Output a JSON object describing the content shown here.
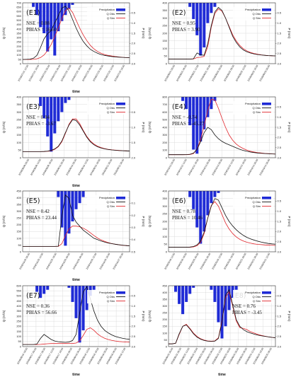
{
  "figure": {
    "colors": {
      "precip": "#1f2bd6",
      "obs": "#111111",
      "sim": "#e0252b",
      "grid": "#d4d4d4",
      "axis": "#333333"
    }
  },
  "chart_data": [
    {
      "id": "E1",
      "title": "(E1)",
      "type": "line",
      "xlabel": "time",
      "ylabel": "Q (m³/s)",
      "y2label": "P (mm)",
      "ylim": [
        0,
        700
      ],
      "yticks": [
        0,
        50,
        100,
        150,
        200,
        250,
        300,
        350,
        400,
        450,
        500,
        550,
        600,
        650,
        700
      ],
      "y2lim": [
        0,
        3.0
      ],
      "y2ticks": [
        0.5,
        1.0,
        1.5,
        2.0,
        2.5,
        3.0
      ],
      "xtick_labels": [
        "2018/07/21 12:00",
        "2018/07/21 18:00",
        "2018/07/22 00:00",
        "2018/07/22 06:00",
        "2018/07/22 12:00",
        "2018/07/22 18:00",
        "2018/07/23 00:00",
        "2018/07/23 06:00",
        "2018/07/23 12:00",
        "2018/07/23 18:00"
      ],
      "nse": "NSE = 0.88",
      "pbias": "PBIAS = 16.60",
      "annotation_pos": "left",
      "legend_pos": "top-right",
      "legend": [
        "Precipitation",
        "Q Obs",
        "Q Sim"
      ],
      "x_count": 31,
      "obs": [
        48,
        50,
        52,
        62,
        95,
        185,
        285,
        345,
        380,
        470,
        550,
        640,
        660,
        610,
        510,
        410,
        325,
        255,
        205,
        165,
        140,
        120,
        105,
        95,
        88,
        82,
        78,
        75,
        72,
        70,
        68
      ],
      "sim": [
        48,
        48,
        48,
        50,
        56,
        70,
        100,
        150,
        220,
        310,
        410,
        520,
        610,
        640,
        590,
        500,
        410,
        330,
        265,
        210,
        170,
        140,
        120,
        105,
        95,
        88,
        82,
        77,
        73,
        70,
        68
      ],
      "precip": [
        0,
        0,
        0,
        0.2,
        0.6,
        1.2,
        1.5,
        2.4,
        1.8,
        2.6,
        1.4,
        0.9,
        0.6,
        0.3,
        0.1,
        0,
        0,
        0,
        0,
        0,
        0,
        0,
        0,
        0,
        0,
        0,
        0,
        0,
        0,
        0,
        0
      ]
    },
    {
      "id": "E2",
      "title": "(E2)",
      "type": "line",
      "xlabel": "",
      "ylabel": "Q (m³/s)",
      "y2label": "P (mm)",
      "ylim": [
        0,
        400
      ],
      "yticks": [
        0,
        50,
        100,
        150,
        200,
        250,
        300,
        350,
        400
      ],
      "y2lim": [
        0,
        3.0
      ],
      "y2ticks": [
        0.5,
        1.0,
        1.5,
        2.0,
        2.5,
        3.0
      ],
      "xtick_labels": [
        "2018/08/01 00:00",
        "2018/08/01 06:00",
        "2018/08/01 12:00",
        "2018/08/01 18:00",
        "2018/08/02 00:00",
        "2018/08/02 06:00",
        "2018/08/02 12:00",
        "2018/08/02 18:00",
        "2018/08/03 00:00"
      ],
      "nse": "NSE = 0.95",
      "pbias": "PBIAS = 3.90",
      "annotation_pos": "left",
      "legend_pos": "top-right",
      "legend": [
        "Precipitation",
        "Q Obs",
        "Q Sim"
      ],
      "x_count": 31,
      "obs": [
        30,
        30,
        30,
        30,
        30,
        30,
        30,
        32,
        70,
        58,
        55,
        130,
        250,
        340,
        370,
        350,
        300,
        240,
        180,
        140,
        110,
        90,
        78,
        70,
        64,
        60,
        57,
        55,
        53,
        52,
        51
      ],
      "sim": [
        30,
        30,
        30,
        30,
        30,
        30,
        30,
        31,
        40,
        42,
        48,
        110,
        240,
        330,
        360,
        345,
        300,
        245,
        190,
        150,
        120,
        98,
        84,
        74,
        67,
        62,
        58,
        55,
        53,
        52,
        51
      ],
      "precip": [
        0,
        0,
        0,
        0,
        0,
        0,
        0.2,
        0.8,
        1.6,
        2.6,
        2.2,
        1.0,
        0.5,
        0.2,
        0,
        0,
        0,
        0,
        0,
        0,
        0,
        0,
        0,
        0,
        0,
        0,
        0,
        0,
        0,
        0,
        0
      ]
    },
    {
      "id": "E3",
      "title": "(E3)",
      "type": "line",
      "xlabel": "time",
      "ylabel": "Q (m³/s)",
      "y2label": "P (mm)",
      "ylim": [
        0,
        400
      ],
      "yticks": [
        0,
        50,
        100,
        150,
        200,
        250,
        300,
        350,
        400
      ],
      "y2lim": [
        0,
        2.0
      ],
      "y2ticks": [
        0.5,
        1.0,
        1.5,
        2.0
      ],
      "xtick_labels": [
        "2019/08/09 06:00",
        "2019/08/09 12:00",
        "2019/08/09 18:00",
        "2019/08/10 00:00",
        "2019/08/10 06:00",
        "2019/08/10 12:00",
        "2019/08/10 18:00",
        "2019/08/11 00:00",
        "2019/08/11 06:00"
      ],
      "nse": "NSE = 0.94",
      "pbias": "PBIAS = -3.67",
      "annotation_pos": "left",
      "legend_pos": "top-right",
      "legend": [
        "Precipitation",
        "Q Obs",
        "Q Sim"
      ],
      "x_count": 31,
      "obs": [
        40,
        40,
        40,
        40,
        40,
        40,
        41,
        43,
        48,
        58,
        75,
        110,
        165,
        215,
        250,
        245,
        215,
        175,
        135,
        105,
        85,
        72,
        64,
        58,
        54,
        51,
        49,
        47,
        46,
        45,
        44
      ],
      "sim": [
        40,
        40,
        40,
        40,
        40,
        40,
        40,
        42,
        46,
        55,
        72,
        105,
        160,
        220,
        255,
        255,
        225,
        180,
        140,
        110,
        90,
        76,
        67,
        60,
        55,
        52,
        50,
        48,
        46,
        45,
        44
      ],
      "precip": [
        0,
        0,
        0,
        0,
        0,
        0.3,
        0.7,
        1.3,
        1.8,
        1.2,
        0.8,
        0.5,
        0.2,
        0.1,
        0,
        0,
        0,
        0,
        0,
        0,
        0,
        0,
        0,
        0,
        0,
        0,
        0,
        0,
        0,
        0,
        0
      ]
    },
    {
      "id": "E4",
      "title": "(E4)",
      "type": "line",
      "xlabel": "",
      "ylabel": "Q (m³/s)",
      "y2label": "P (mm)",
      "ylim": [
        0,
        800
      ],
      "yticks": [
        0,
        100,
        200,
        300,
        400,
        500,
        600,
        700,
        800
      ],
      "y2lim": [
        0,
        3.0
      ],
      "y2ticks": [
        0.5,
        1.0,
        1.5,
        2.0,
        2.5,
        3.0
      ],
      "xtick_labels": [
        "2019/10/12 06:00",
        "2019/10/12 12:00",
        "2019/10/12 18:00",
        "2019/10/13 00:00",
        "2019/10/13 06:00",
        "2019/10/13 12:00",
        "2019/10/13 18:00",
        "2019/10/14 00:00",
        "2019/10/14 06:00"
      ],
      "nse": "NSE = -0.74",
      "pbias": "PBIAS = -45.27",
      "annotation_pos": "left",
      "legend_pos": "top-right",
      "legend": [
        "Precipitation",
        "Q Obs",
        "Q Sim"
      ],
      "x_count": 31,
      "obs": [
        40,
        40,
        40,
        40,
        40,
        41,
        45,
        60,
        110,
        210,
        330,
        400,
        370,
        300,
        250,
        215,
        190,
        170,
        150,
        130,
        110,
        95,
        85,
        75,
        68,
        62,
        58,
        55,
        52,
        50,
        48
      ],
      "sim": [
        40,
        40,
        40,
        40,
        40,
        40,
        42,
        55,
        110,
        240,
        420,
        620,
        770,
        760,
        650,
        520,
        400,
        300,
        230,
        180,
        145,
        120,
        100,
        85,
        75,
        67,
        62,
        57,
        54,
        51,
        49
      ],
      "precip": [
        0,
        0,
        0,
        0,
        0.2,
        0.6,
        1.4,
        2.6,
        2.8,
        2.2,
        1.6,
        1.0,
        0.6,
        0.2,
        0,
        0,
        0,
        0,
        0,
        0,
        0,
        0,
        0,
        0,
        0,
        0,
        0,
        0,
        0,
        0,
        0
      ]
    },
    {
      "id": "E5",
      "title": "(E5)",
      "type": "line",
      "xlabel": "time",
      "ylabel": "Q (m³/s)",
      "y2label": "P (mm)",
      "ylim": [
        0,
        450
      ],
      "yticks": [
        0,
        50,
        100,
        150,
        200,
        250,
        300,
        350,
        400,
        450
      ],
      "y2lim": [
        0,
        0.5
      ],
      "y2ticks": [
        0.1,
        0.2,
        0.3,
        0.4,
        0.5
      ],
      "xtick_labels": [
        "2019/10/25 06:00",
        "2019/10/25 12:00",
        "2019/10/25 18:00",
        "2019/10/26 00:00",
        "2019/10/26 06:00",
        "2019/10/26 12:00",
        "2019/10/26 18:00",
        "2019/10/27 00:00"
      ],
      "nse": "NSE = 0.42",
      "pbias": "PBIAS = 23.44",
      "annotation_pos": "left",
      "legend_pos": "top-right",
      "legend": [
        "Precipitation",
        "Q Obs",
        "Q Sim"
      ],
      "x_count": 31,
      "obs": [
        40,
        40,
        40,
        40,
        40,
        40,
        40,
        40,
        40,
        40,
        41,
        260,
        420,
        395,
        270,
        220,
        190,
        160,
        140,
        120,
        100,
        90,
        80,
        72,
        65,
        60,
        56,
        52,
        49,
        46,
        44
      ],
      "sim": [
        40,
        40,
        40,
        40,
        40,
        40,
        40,
        40,
        40,
        40,
        40,
        60,
        120,
        170,
        190,
        190,
        185,
        175,
        160,
        140,
        120,
        102,
        88,
        77,
        68,
        61,
        56,
        52,
        48,
        46,
        44
      ],
      "precip": [
        0,
        0,
        0,
        0,
        0,
        0,
        0,
        0,
        0,
        0,
        0.05,
        0.3,
        0.45,
        0.35,
        0.25,
        0.15,
        0.1,
        0.05,
        0,
        0,
        0,
        0,
        0,
        0,
        0,
        0,
        0,
        0,
        0,
        0,
        0
      ]
    },
    {
      "id": "E6",
      "title": "(E6)",
      "type": "line",
      "xlabel": "",
      "ylabel": "Q (m³/s)",
      "y2label": "P (mm)",
      "ylim": [
        0,
        400
      ],
      "yticks": [
        0,
        50,
        100,
        150,
        200,
        250,
        300,
        350,
        400
      ],
      "y2lim": [
        0,
        3.0
      ],
      "y2ticks": [
        0.5,
        1.0,
        1.5,
        2.0,
        2.5,
        3.0
      ],
      "xtick_labels": [
        "2019/03/19 12:00",
        "2019/03/19 18:00",
        "2019/03/20 00:00",
        "2019/03/20 06:00",
        "2019/03/20 12:00",
        "2019/03/20 18:00",
        "2019/03/21 00:00",
        "2019/03/21 06:00",
        "2019/03/21 12:00"
      ],
      "nse": "NSE = 0.78",
      "pbias": "PBIAS = 10.46",
      "annotation_pos": "left",
      "legend_pos": "top-right",
      "legend": [
        "Precipitation",
        "Q Obs",
        "Q Sim"
      ],
      "x_count": 31,
      "obs": [
        30,
        30,
        30,
        30,
        30,
        30,
        31,
        35,
        45,
        70,
        130,
        220,
        300,
        350,
        340,
        290,
        240,
        200,
        170,
        145,
        125,
        108,
        95,
        85,
        77,
        70,
        64,
        59,
        55,
        52,
        50
      ],
      "sim": [
        30,
        30,
        30,
        30,
        30,
        30,
        30,
        32,
        40,
        62,
        120,
        220,
        305,
        330,
        300,
        245,
        190,
        150,
        120,
        98,
        82,
        71,
        63,
        57,
        52,
        49,
        47,
        45,
        44,
        43,
        42
      ],
      "precip": [
        0,
        0,
        0,
        0,
        0,
        0,
        0.3,
        0.9,
        1.8,
        2.6,
        2.0,
        1.2,
        0.6,
        0.3,
        0.1,
        0,
        0,
        0,
        0,
        0,
        0,
        0,
        0,
        0,
        0,
        0,
        0,
        0,
        0,
        0,
        0
      ]
    },
    {
      "id": "E7",
      "title": "(E7)",
      "type": "line",
      "xlabel": "time",
      "ylabel": "Q (m³/s)",
      "y2label": "P (mm)",
      "ylim": [
        0,
        600
      ],
      "yticks": [
        0,
        50,
        100,
        150,
        200,
        250,
        300,
        350,
        400,
        450,
        500,
        550,
        600
      ],
      "y2lim": [
        0,
        3.0
      ],
      "y2ticks": [
        0.5,
        1.0,
        1.5,
        2.0,
        2.5,
        3.0
      ],
      "xtick_labels": [
        "2019/09/16 18:00",
        "2019/09/17 00:00",
        "2019/09/17 06:00",
        "2019/09/17 12:00",
        "2019/09/17 18:00",
        "2019/09/18 00:00",
        "2019/09/18 06:00",
        "2019/09/18 12:00",
        "2019/09/18 18:00",
        "2019/09/19 00:00",
        "2019/09/19 06:00",
        "2019/09/19 12:00"
      ],
      "nse": "NSE = 0.36",
      "pbias": "PBIAS = 56.66",
      "annotation_pos": "left",
      "legend_pos": "top-right",
      "legend": [
        "Precipitation",
        "Q Obs",
        "Q Sim"
      ],
      "x_count": 31,
      "obs": [
        20,
        20,
        20,
        20,
        25,
        80,
        120,
        95,
        70,
        55,
        48,
        44,
        42,
        45,
        60,
        120,
        330,
        540,
        590,
        470,
        350,
        260,
        200,
        160,
        135,
        115,
        100,
        90,
        82,
        76,
        72
      ],
      "sim": [
        20,
        20,
        20,
        20,
        20,
        22,
        25,
        28,
        30,
        30,
        30,
        30,
        30,
        30,
        31,
        35,
        55,
        110,
        170,
        185,
        160,
        125,
        100,
        82,
        70,
        61,
        55,
        50,
        47,
        45,
        44
      ],
      "precip": [
        0,
        0,
        0,
        0,
        0.3,
        0.6,
        0.4,
        0.2,
        0,
        0,
        0,
        0,
        0,
        0.1,
        0.8,
        1.6,
        2.8,
        2.2,
        1.2,
        0.5,
        0.2,
        0,
        0,
        0,
        0,
        0,
        0,
        0,
        0,
        0,
        0
      ]
    },
    {
      "id": "E8",
      "title": "(E8)",
      "type": "line",
      "xlabel": "time",
      "ylabel": "Q (m³/s)",
      "y2label": "P (mm)",
      "ylim": [
        0,
        450
      ],
      "yticks": [
        0,
        50,
        100,
        150,
        200,
        250,
        300,
        350,
        400,
        450
      ],
      "y2lim": [
        0,
        3.0
      ],
      "y2ticks": [
        0.5,
        1.0,
        1.5,
        2.0,
        2.5,
        3.0
      ],
      "xtick_labels": [
        "2019/09/22 00:00",
        "2019/09/22 06:00",
        "2019/09/22 12:00",
        "2019/09/22 18:00",
        "2019/09/23 00:00",
        "2019/09/23 06:00",
        "2019/09/23 12:00",
        "2019/09/23 18:00",
        "2019/09/24 00:00",
        "2019/09/24 06:00",
        "2019/09/24 12:00",
        "2019/09/24 18:00",
        "2019/09/25 00:00"
      ],
      "nse": "NSE = 0.76",
      "pbias": "PBIAS = -3.45",
      "annotation_pos": "right",
      "legend_pos": "top-right",
      "legend": [
        "Precipitation",
        "Q Obs",
        "Q Sim"
      ],
      "x_count": 31,
      "obs": [
        20,
        20,
        25,
        95,
        150,
        160,
        130,
        95,
        70,
        55,
        45,
        40,
        38,
        40,
        60,
        180,
        380,
        420,
        310,
        200,
        150,
        125,
        110,
        100,
        92,
        85,
        80,
        76,
        72,
        68,
        65
      ],
      "sim": [
        20,
        20,
        24,
        90,
        150,
        165,
        135,
        100,
        75,
        58,
        48,
        42,
        40,
        42,
        65,
        190,
        360,
        405,
        300,
        190,
        140,
        135,
        125,
        110,
        100,
        90,
        83,
        77,
        72,
        68,
        65
      ],
      "precip": [
        0,
        0,
        0.3,
        0.9,
        1.4,
        0.8,
        0.4,
        0.1,
        0,
        0,
        0,
        0,
        0.2,
        0.8,
        1.8,
        2.6,
        2.0,
        1.2,
        0.6,
        0.2,
        0,
        0,
        0,
        0,
        0,
        0,
        0,
        0,
        0,
        0,
        0
      ]
    }
  ]
}
